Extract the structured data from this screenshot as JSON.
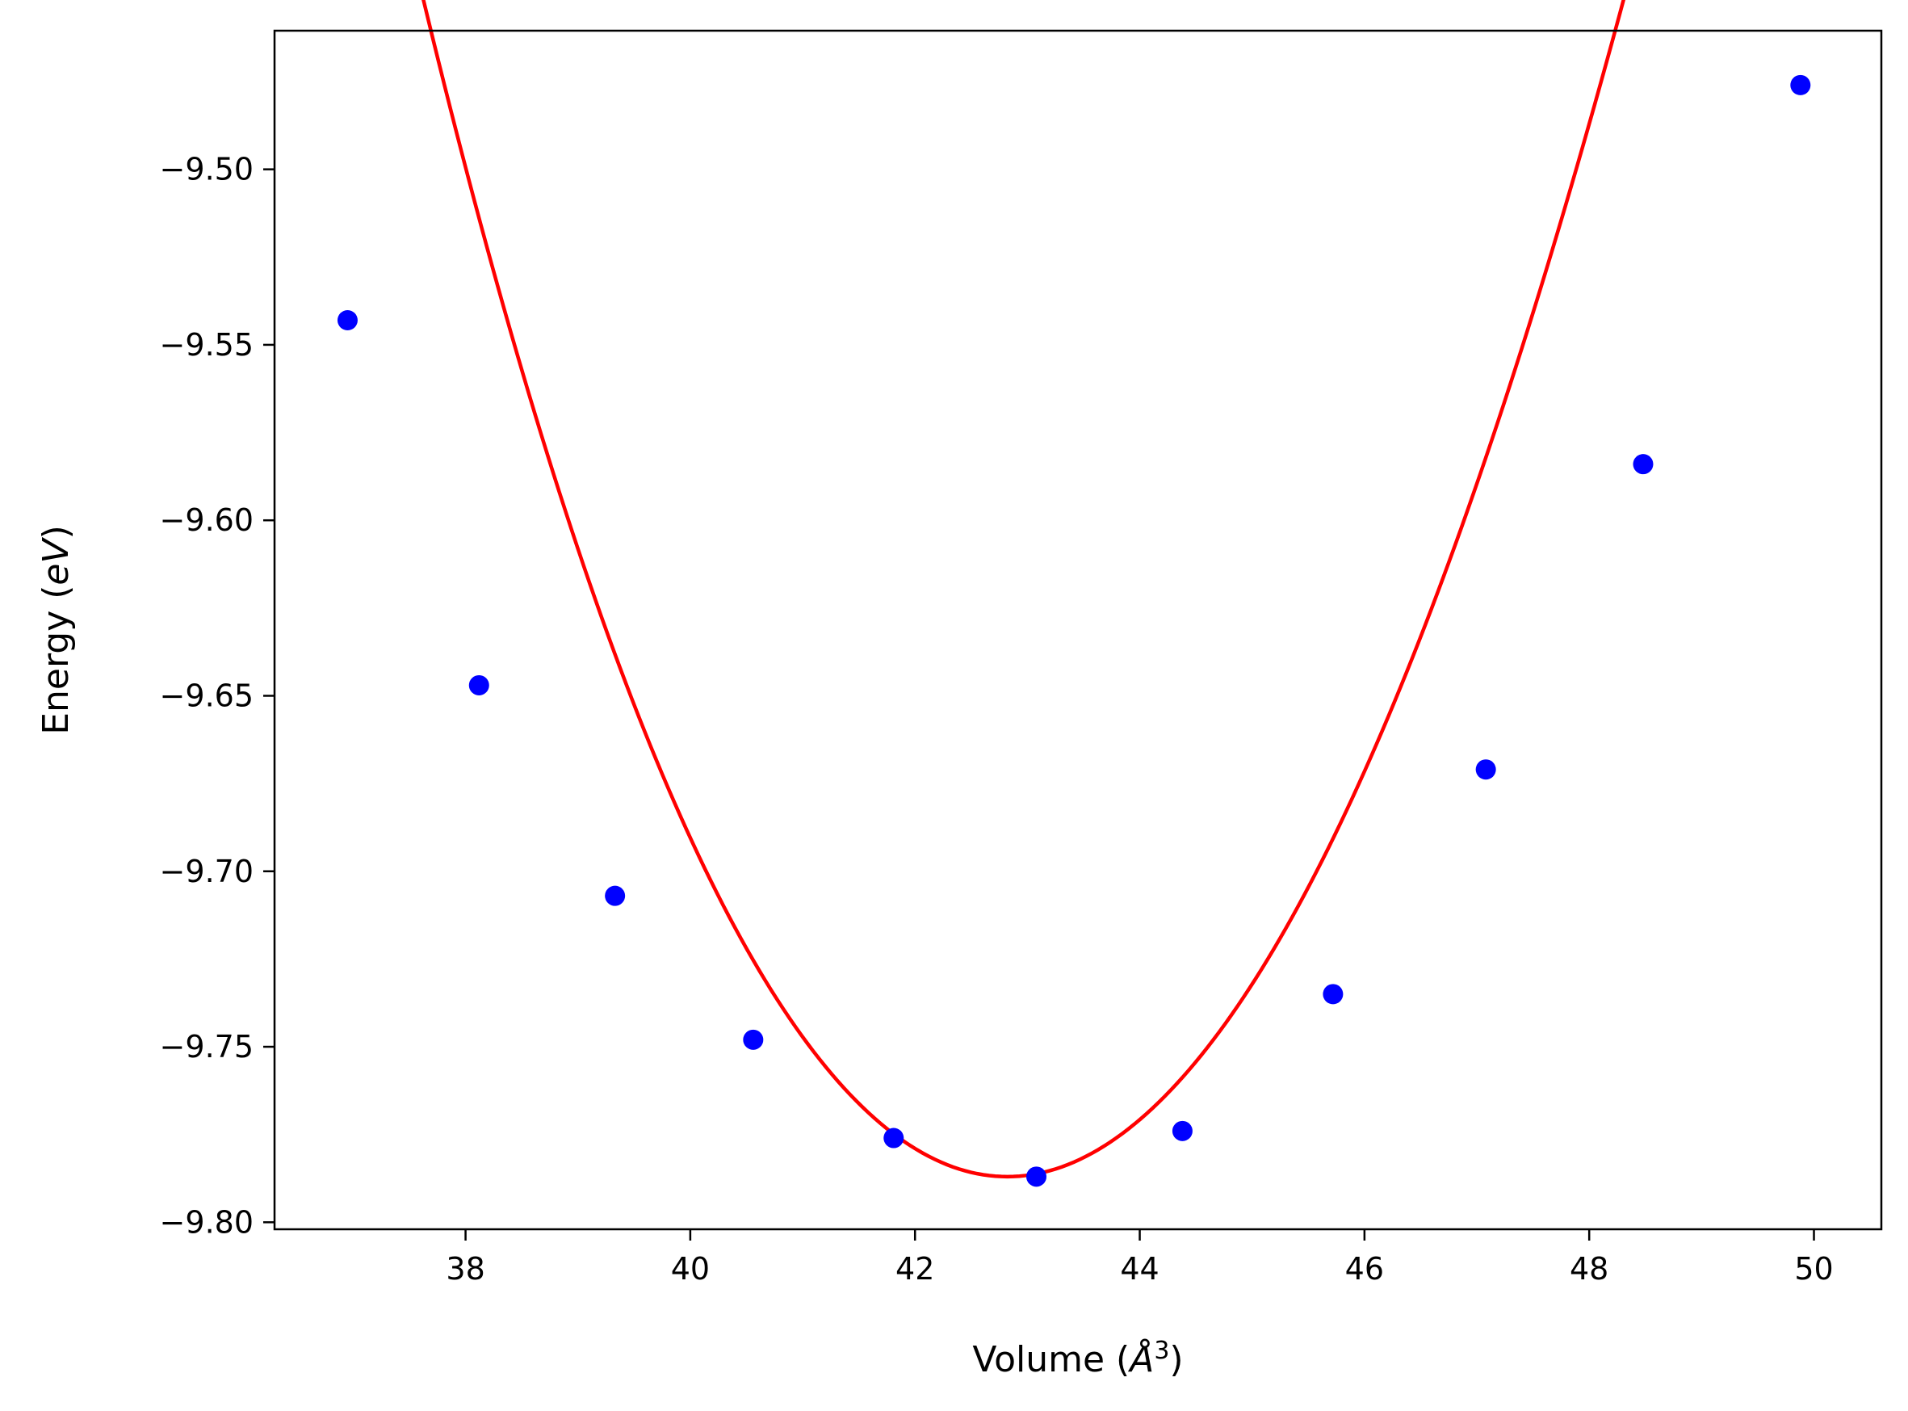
{
  "chart_data": {
    "type": "scatter",
    "title": "",
    "xlabel": {
      "main": "Volume (",
      "unit": "Å",
      "exponent": "3",
      "close": ")"
    },
    "ylabel": {
      "main": "Energy (",
      "unit": "eV",
      "close": ")"
    },
    "xlim": [
      36.3,
      50.6
    ],
    "ylim": [
      -9.802,
      -9.4605
    ],
    "xticks": [
      38,
      40,
      42,
      44,
      46,
      48,
      50
    ],
    "xtick_labels": [
      "38",
      "40",
      "42",
      "44",
      "46",
      "48",
      "50"
    ],
    "yticks": [
      -9.8,
      -9.75,
      -9.7,
      -9.65,
      -9.6,
      -9.55,
      -9.5
    ],
    "ytick_labels": [
      "−9.80",
      "−9.75",
      "−9.70",
      "−9.65",
      "−9.60",
      "−9.55",
      "−9.50"
    ],
    "grid": false,
    "series": [
      {
        "kind": "scatter",
        "color": "#0000ff",
        "x": [
          36.95,
          38.12,
          39.33,
          40.56,
          41.81,
          43.08,
          44.38,
          45.72,
          47.08,
          48.48,
          49.88
        ],
        "y": [
          -9.543,
          -9.647,
          -9.707,
          -9.748,
          -9.776,
          -9.787,
          -9.774,
          -9.735,
          -9.671,
          -9.584,
          -9.476
        ]
      },
      {
        "kind": "line",
        "color": "#ff0000",
        "fit": {
          "v0": 42.82,
          "e0": -9.787,
          "curvature": 0.0118,
          "asymmetry": -0.00012,
          "x_range": [
            36.95,
            49.88
          ]
        }
      }
    ]
  }
}
